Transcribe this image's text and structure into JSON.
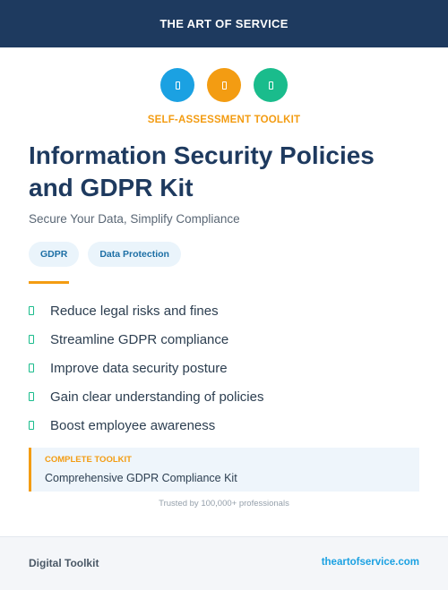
{
  "header": {
    "brand": "THE ART OF SERVICE"
  },
  "icons": [
    {
      "name": "document-icon",
      "color": "#1ba1e2"
    },
    {
      "name": "document-icon",
      "color": "#f39c12"
    },
    {
      "name": "document-icon",
      "color": "#1abc8c"
    }
  ],
  "hero": {
    "kicker": "SELF-ASSESSMENT TOOLKIT",
    "title_line1": "Information Security Policies",
    "title_line2": "and GDPR Kit",
    "subtitle": "Secure Your Data, Simplify Compliance"
  },
  "tags": [
    "GDPR",
    "Data Protection"
  ],
  "benefits": [
    "Reduce legal risks and fines",
    "Streamline GDPR compliance",
    "Improve data security posture",
    "Gain clear understanding of policies",
    "Boost employee awareness"
  ],
  "callout": {
    "label": "COMPLETE TOOLKIT",
    "text": "Comprehensive GDPR Compliance Kit"
  },
  "trusted": "Trusted by 100,000+ professionals",
  "footer": {
    "left": "Digital Toolkit",
    "right": "theartofservice.com"
  },
  "colors": {
    "navy": "#1e3a5f",
    "accent_orange": "#f39c12",
    "accent_blue": "#1ba1e2",
    "accent_green": "#1abc8c"
  }
}
